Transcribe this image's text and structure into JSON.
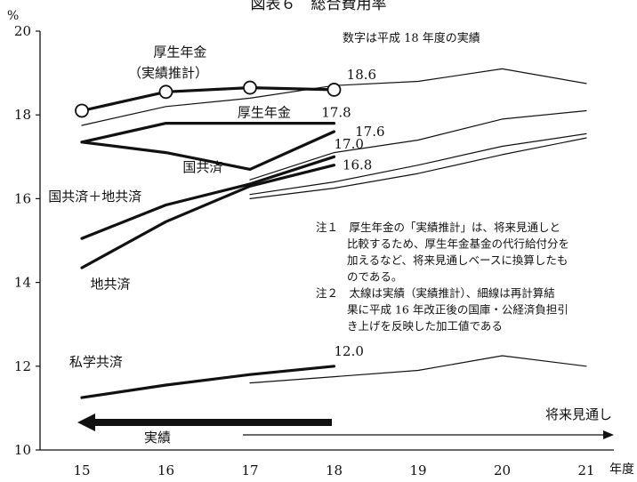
{
  "chart_data": {
    "type": "line",
    "title": "図表６　総合費用率",
    "y_unit": "%",
    "x_unit": "年度",
    "ylim": [
      10,
      20
    ],
    "xlim": [
      15,
      21
    ],
    "y_ticks": [
      "10",
      "12",
      "14",
      "16",
      "18",
      "20"
    ],
    "x_ticks": [
      "15",
      "16",
      "17",
      "18",
      "19",
      "20",
      "21"
    ],
    "subtitle_note": "数字は平成 18 年度の実績",
    "series": [
      {
        "name": "厚生年金（実績推計）",
        "kind": "actual",
        "markers": true,
        "x": [
          15,
          16,
          17,
          18
        ],
        "y": [
          18.1,
          18.55,
          18.65,
          18.6
        ]
      },
      {
        "name": "厚生年金",
        "kind": "projection",
        "x": [
          15,
          16,
          17,
          18,
          19,
          20,
          21
        ],
        "y": [
          17.75,
          18.2,
          18.4,
          18.7,
          18.8,
          19.1,
          18.75
        ]
      },
      {
        "name": "厚生年金",
        "kind": "actual",
        "x": [
          15,
          16,
          17,
          18
        ],
        "y": [
          17.35,
          17.8,
          17.8,
          17.8
        ]
      },
      {
        "name": "国共済",
        "kind": "actual",
        "x": [
          15,
          16,
          17,
          18
        ],
        "y": [
          17.35,
          17.1,
          16.7,
          17.6
        ]
      },
      {
        "name": "国共済",
        "kind": "projection",
        "x": [
          17,
          18,
          19,
          20,
          21
        ],
        "y": [
          16.45,
          17.1,
          17.4,
          17.9,
          18.1
        ]
      },
      {
        "name": "国共済＋地共済",
        "kind": "actual",
        "x": [
          15,
          16,
          17,
          18
        ],
        "y": [
          15.05,
          15.85,
          16.35,
          17.0
        ]
      },
      {
        "name": "国共済＋地共済",
        "kind": "projection",
        "x": [
          17,
          18,
          19,
          20,
          21
        ],
        "y": [
          16.1,
          16.4,
          16.8,
          17.25,
          17.55
        ]
      },
      {
        "name": "地共済",
        "kind": "actual",
        "x": [
          15,
          16,
          17,
          18
        ],
        "y": [
          14.35,
          15.45,
          16.3,
          16.8
        ]
      },
      {
        "name": "地共済",
        "kind": "projection",
        "x": [
          17,
          18,
          19,
          20,
          21
        ],
        "y": [
          16.0,
          16.25,
          16.6,
          17.05,
          17.45
        ]
      },
      {
        "name": "私学共済",
        "kind": "actual",
        "x": [
          15,
          16,
          17,
          18
        ],
        "y": [
          11.25,
          11.55,
          11.8,
          12.0
        ]
      },
      {
        "name": "私学共済",
        "kind": "projection",
        "x": [
          17,
          18,
          19,
          20,
          21
        ],
        "y": [
          11.6,
          11.75,
          11.9,
          12.25,
          12.0
        ]
      }
    ],
    "series_labels": [
      {
        "text": "厚生年金",
        "anchor": [
          15.85,
          19.4
        ]
      },
      {
        "text": "（実績推計）",
        "anchor": [
          15.55,
          18.9
        ]
      },
      {
        "text": "厚生年金",
        "anchor": [
          16.85,
          17.95
        ]
      },
      {
        "text": "国共済",
        "anchor": [
          16.2,
          16.65
        ]
      },
      {
        "text": "国共済＋地共済",
        "anchor": [
          14.6,
          15.95
        ]
      },
      {
        "text": "地共済",
        "anchor": [
          15.1,
          13.85
        ]
      },
      {
        "text": "私学共済",
        "anchor": [
          14.85,
          12.0
        ]
      }
    ],
    "value_labels": [
      {
        "text": "18.6",
        "anchor": [
          18.15,
          18.85
        ]
      },
      {
        "text": "17.8",
        "anchor": [
          17.85,
          17.95
        ]
      },
      {
        "text": "17.6",
        "anchor": [
          18.25,
          17.5
        ]
      },
      {
        "text": "17.0",
        "anchor": [
          18.0,
          17.2
        ]
      },
      {
        "text": "16.8",
        "anchor": [
          18.1,
          16.7
        ]
      },
      {
        "text": "12.0",
        "anchor": [
          18.0,
          12.25
        ]
      }
    ],
    "notes": [
      "注１　厚生年金の「実績推計」は、将来見通しと",
      "比較するため、厚生年金基金の代行給付分を",
      "加えるなど、将来見通しベースに換算したも",
      "のである。",
      "注２　太線は実績（実績推計）、細線は再計算結",
      "果に平成 16 年改正後の国庫・公経済負担引",
      "き上げを反映した加工値である"
    ],
    "legend_actual": "実績",
    "legend_projection": "将来見通し"
  }
}
